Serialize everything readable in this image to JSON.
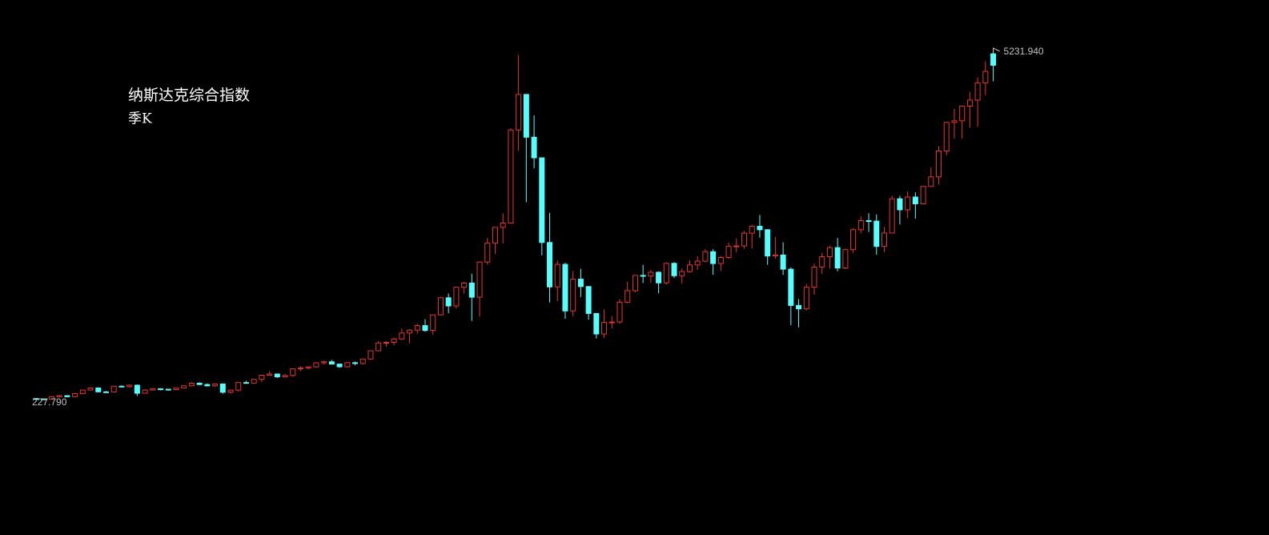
{
  "chart_data": {
    "type": "candlestick",
    "title": "纳斯达克综合指数",
    "subtitle": "季K",
    "open": [
      255,
      250,
      247,
      280,
      296,
      280,
      325,
      375,
      405,
      350,
      349,
      430,
      424,
      444,
      330,
      375,
      394,
      387,
      381,
      406,
      435,
      473,
      454,
      435,
      462,
      344,
      374,
      482,
      475,
      527,
      586,
      603,
      563,
      583,
      677,
      690,
      704,
      762,
      777,
      744,
      706,
      764,
      752,
      817,
      933,
      1044,
      1052,
      1101,
      1185,
      1226,
      1291,
      1222,
      1443,
      1686,
      1570,
      1835,
      1895,
      1694,
      2193,
      2461,
      2686,
      2746,
      4069,
      4573,
      3966,
      3673,
      2471,
      1840,
      2160,
      1499,
      1950,
      1845,
      1463,
      1172,
      1336,
      1341,
      1623,
      1787,
      2003,
      1994,
      2048,
      1897,
      2175,
      1999,
      2057,
      2152,
      2205,
      2340,
      2172,
      2258,
      2415,
      2422,
      2603,
      2701,
      2652,
      2279,
      2293,
      2092,
      1577,
      1529,
      1835,
      2122,
      2269,
      2398,
      2109,
      2369,
      2653,
      2781,
      2774,
      2415,
      2605,
      3092,
      2935,
      3116,
      3020,
      3268,
      3403,
      3771,
      4177,
      4199,
      4408,
      4493,
      4736,
      5150
    ],
    "high": [
      262,
      255,
      288,
      304,
      298,
      327,
      377,
      411,
      412,
      362,
      434,
      441,
      456,
      456,
      386,
      397,
      398,
      388,
      408,
      437,
      486,
      485,
      469,
      470,
      469,
      382,
      490,
      507,
      530,
      586,
      644,
      610,
      601,
      679,
      714,
      711,
      767,
      791,
      804,
      753,
      775,
      780,
      818,
      936,
      1070,
      1070,
      1120,
      1250,
      1240,
      1317,
      1382,
      1450,
      1698,
      1746,
      1842,
      1911,
      2028,
      2200,
      2536,
      2688,
      2888,
      4090,
      5132.52,
      4580,
      4275,
      3671,
      2892,
      2216,
      2183,
      2065,
      2098,
      1853,
      1466,
      1521,
      1425,
      1667,
      1915,
      2010,
      2154,
      2079,
      2061,
      2191,
      2191,
      2102,
      2219,
      2278,
      2375,
      2375,
      2281,
      2470,
      2531,
      2635,
      2724,
      2861,
      2661,
      2552,
      2473,
      2117,
      1667,
      1881,
      2168,
      2326,
      2424,
      2535,
      2384,
      2676,
      2840,
      2887,
      2869,
      2692,
      3134,
      3134,
      3196,
      3184,
      3271,
      3536,
      3838,
      4182,
      4371,
      4415,
      4610,
      4814,
      5042,
      5231.94
    ],
    "low": [
      227.79,
      238,
      245,
      276,
      275,
      278,
      322,
      370,
      342,
      341,
      345,
      414,
      412,
      291,
      328,
      370,
      372,
      366,
      377,
      402,
      432,
      445,
      427,
      420,
      323,
      325,
      355,
      470,
      468,
      490,
      580,
      548,
      557,
      563,
      645,
      668,
      694,
      740,
      741,
      691,
      693,
      729,
      740,
      807,
      924,
      990,
      1013,
      1085,
      1040,
      1174,
      1201,
      1160,
      1434,
      1466,
      1535,
      1748,
      1357,
      1419,
      2156,
      2312,
      2458,
      2740,
      3770,
      3042,
      3525,
      2288,
      1619,
      1638,
      1387,
      1423,
      1696,
      1375,
      1108,
      1114,
      1253,
      1320,
      1607,
      1765,
      1896,
      1899,
      1750,
      1873,
      1968,
      1889,
      2040,
      2082,
      2189,
      2012,
      2065,
      2239,
      2331,
      2383,
      2386,
      2539,
      2155,
      2241,
      2011,
      1295,
      1265,
      1506,
      1727,
      2024,
      2100,
      2061,
      2091,
      2324,
      2603,
      2621,
      2298,
      2335,
      2603,
      2726,
      2814,
      2810,
      3019,
      3270,
      3294,
      3708,
      3946,
      3946,
      4102,
      4116,
      4563,
      4759
    ],
    "close": [
      250,
      247,
      280,
      296,
      280,
      325,
      375,
      405,
      350,
      349,
      430,
      424,
      444,
      330,
      375,
      394,
      387,
      381,
      406,
      435,
      473,
      454,
      435,
      462,
      344,
      374,
      482,
      475,
      527,
      586,
      603,
      563,
      583,
      677,
      690,
      704,
      762,
      777,
      744,
      706,
      764,
      752,
      817,
      933,
      1044,
      1052,
      1101,
      1185,
      1226,
      1291,
      1222,
      1443,
      1686,
      1570,
      1835,
      1895,
      1694,
      2193,
      2461,
      2686,
      2746,
      4069,
      4573,
      3966,
      3673,
      2471,
      1840,
      2160,
      1499,
      1950,
      1845,
      1463,
      1172,
      1336,
      1341,
      1623,
      1787,
      2003,
      1994,
      2048,
      1897,
      2175,
      1999,
      2057,
      2152,
      2205,
      2340,
      2172,
      2258,
      2415,
      2422,
      2603,
      2701,
      2652,
      2279,
      2293,
      2092,
      1577,
      1529,
      1835,
      2122,
      2269,
      2398,
      2109,
      2369,
      2653,
      2781,
      2774,
      2415,
      2605,
      3092,
      2935,
      3116,
      3020,
      3268,
      3403,
      3771,
      4177,
      4199,
      4408,
      4493,
      4736,
      4901,
      4987
    ],
    "up_color": "#e8342e",
    "down_color": "#54ffff",
    "ylim": [
      227.79,
      5231.94
    ],
    "annotations": [
      {
        "value": 5231.94,
        "label": "5231.940"
      },
      {
        "value": 227.79,
        "label": "227.790"
      }
    ]
  }
}
